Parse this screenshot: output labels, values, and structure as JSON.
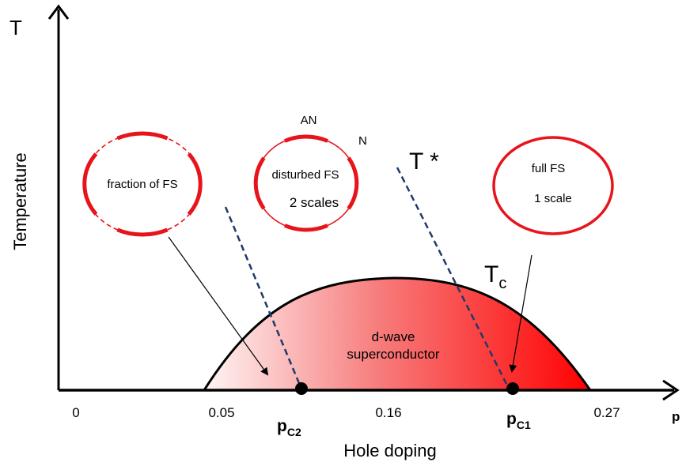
{
  "axes": {
    "y_symbol": "T",
    "y_label": "Temperature",
    "x_symbol": "p",
    "x_label": "Hole doping"
  },
  "ticks": [
    "0",
    "0.05",
    "0.16",
    "0.27"
  ],
  "critical_points": {
    "pc2_main": "p",
    "pc2_sub": "C2",
    "pc1_main": "p",
    "pc1_sub": "C1"
  },
  "dome": {
    "line1": "d-wave",
    "line2": "superconductor",
    "colors": {
      "light": "#fff3f3",
      "dark": "#ff0000",
      "outline": "#000000"
    }
  },
  "labels": {
    "tstar": "T *",
    "tc_main": "T",
    "tc_sub": "c"
  },
  "bubbles": {
    "fraction": {
      "text": "fraction of FS"
    },
    "disturbed": {
      "line1": "disturbed FS",
      "line2": "2 scales",
      "an": "AN",
      "n": "N"
    },
    "full": {
      "line1": "full FS",
      "line2": "1 scale"
    }
  },
  "colors": {
    "fermi_surface": "#e8141b",
    "crossover_line": "#1f3a6b"
  }
}
